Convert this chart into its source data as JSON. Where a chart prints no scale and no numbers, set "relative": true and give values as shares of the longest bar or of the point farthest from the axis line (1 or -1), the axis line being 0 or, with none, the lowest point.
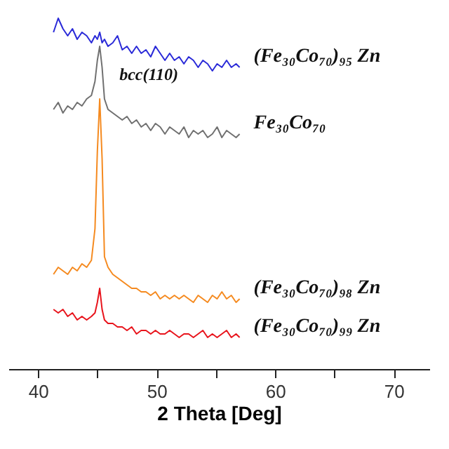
{
  "chart_data": {
    "type": "line",
    "relative": true,
    "xlabel": "2 Theta [Deg]",
    "xlim": [
      37.5,
      73
    ],
    "xticks": [
      40,
      {
        "value": 45,
        "label": null
      },
      50,
      {
        "value": 55,
        "label": null
      },
      60,
      {
        "value": 65,
        "label": null
      },
      70
    ],
    "x": [
      41.3,
      41.7,
      42.1,
      42.5,
      42.9,
      43.3,
      43.7,
      44.1,
      44.5,
      44.8,
      45.0,
      45.2,
      45.4,
      45.6,
      45.9,
      46.3,
      46.7,
      47.1,
      47.5,
      47.9,
      48.3,
      48.7,
      49.1,
      49.5,
      49.9,
      50.3,
      50.7,
      51.1,
      51.5,
      51.9,
      52.3,
      52.7,
      53.1,
      53.5,
      53.9,
      54.3,
      54.7,
      55.1,
      55.5,
      55.9,
      56.3,
      56.7,
      57.0
    ],
    "series": [
      {
        "name": "(Fe₃₀Co₇₀)₉₅ Zn",
        "color": "#2a2ad8",
        "values": [
          0.96,
          1.0,
          0.97,
          0.95,
          0.97,
          0.94,
          0.96,
          0.95,
          0.93,
          0.95,
          0.94,
          0.96,
          0.93,
          0.94,
          0.92,
          0.93,
          0.95,
          0.91,
          0.92,
          0.9,
          0.92,
          0.9,
          0.91,
          0.89,
          0.92,
          0.9,
          0.88,
          0.9,
          0.88,
          0.89,
          0.87,
          0.89,
          0.88,
          0.86,
          0.88,
          0.87,
          0.85,
          0.87,
          0.86,
          0.88,
          0.86,
          0.87,
          0.86
        ]
      },
      {
        "name": "Fe₃₀Co₇₀",
        "color": "#707070",
        "values": [
          0.74,
          0.76,
          0.73,
          0.75,
          0.74,
          0.76,
          0.75,
          0.77,
          0.78,
          0.82,
          0.88,
          0.92,
          0.86,
          0.77,
          0.74,
          0.73,
          0.72,
          0.71,
          0.72,
          0.7,
          0.71,
          0.69,
          0.7,
          0.68,
          0.7,
          0.69,
          0.67,
          0.69,
          0.68,
          0.67,
          0.69,
          0.66,
          0.68,
          0.67,
          0.68,
          0.66,
          0.67,
          0.69,
          0.66,
          0.68,
          0.67,
          0.66,
          0.67
        ]
      },
      {
        "name": "(Fe₃₀Co₇₀)₉₈ Zn",
        "color": "#f58a1f",
        "values": [
          0.27,
          0.29,
          0.28,
          0.27,
          0.29,
          0.28,
          0.3,
          0.29,
          0.31,
          0.4,
          0.62,
          0.77,
          0.6,
          0.32,
          0.29,
          0.27,
          0.26,
          0.25,
          0.24,
          0.23,
          0.23,
          0.22,
          0.22,
          0.21,
          0.22,
          0.2,
          0.21,
          0.2,
          0.21,
          0.2,
          0.21,
          0.2,
          0.19,
          0.21,
          0.2,
          0.19,
          0.21,
          0.2,
          0.22,
          0.2,
          0.21,
          0.19,
          0.2
        ]
      },
      {
        "name": "(Fe₃₀Co₇₀)₉₉ Zn",
        "color": "#e8141c",
        "values": [
          0.17,
          0.16,
          0.17,
          0.15,
          0.16,
          0.14,
          0.15,
          0.14,
          0.15,
          0.16,
          0.19,
          0.23,
          0.17,
          0.14,
          0.13,
          0.13,
          0.12,
          0.12,
          0.11,
          0.12,
          0.1,
          0.11,
          0.11,
          0.1,
          0.11,
          0.1,
          0.1,
          0.11,
          0.1,
          0.09,
          0.1,
          0.1,
          0.09,
          0.1,
          0.11,
          0.09,
          0.1,
          0.09,
          0.1,
          0.11,
          0.09,
          0.1,
          0.09
        ]
      }
    ],
    "annotations": [
      {
        "text": "bcc(110)",
        "x": 45.2,
        "y": 0.92
      }
    ]
  }
}
